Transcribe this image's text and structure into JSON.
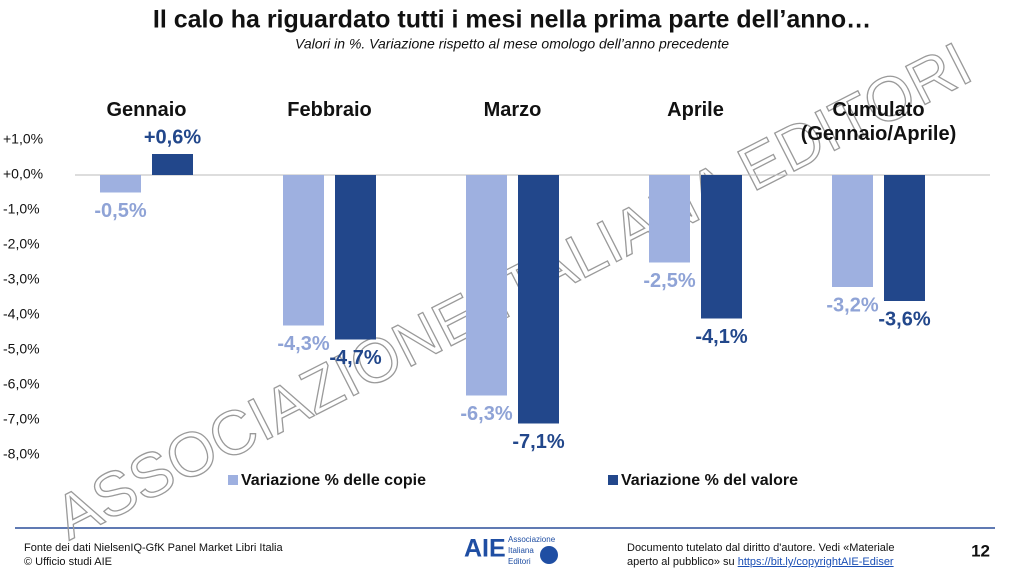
{
  "chart_data": {
    "type": "bar",
    "title": "Il calo ha riguardato tutti i mesi nella prima parte dell’anno…",
    "subtitle": "Valori in %. Variazione rispetto al mese omologo dell’anno precedente",
    "categories": [
      "Gennaio",
      "Febbraio",
      "Marzo",
      "Aprile",
      "Cumulato\n(Gennaio/Aprile)"
    ],
    "series": [
      {
        "name": "Variazione % delle copie",
        "color": "#9eb0e0",
        "values": [
          -0.5,
          -4.3,
          -6.3,
          -2.5,
          -3.2
        ],
        "value_labels": [
          "-0,5%",
          "-4,3%",
          "-6,3%",
          "-2,5%",
          "-3,2%"
        ]
      },
      {
        "name": "Variazione % del valore",
        "color": "#22478b",
        "values": [
          0.6,
          -4.7,
          -7.1,
          -4.1,
          -3.6
        ],
        "value_labels": [
          "+0,6%",
          "-4,7%",
          "-7,1%",
          "-4,1%",
          "-3,6%"
        ]
      }
    ],
    "ylim": [
      -8,
      1
    ],
    "yticks": [
      {
        "value": 1,
        "label": "+1,0%"
      },
      {
        "value": 0,
        "label": "+0,0%"
      },
      {
        "value": -1,
        "label": "-1,0%"
      },
      {
        "value": -2,
        "label": "-2,0%"
      },
      {
        "value": -3,
        "label": "-3,0%"
      },
      {
        "value": -4,
        "label": "-4,0%"
      },
      {
        "value": -5,
        "label": "-5,0%"
      },
      {
        "value": -6,
        "label": "-6,0%"
      },
      {
        "value": -7,
        "label": "-7,0%"
      },
      {
        "value": -8,
        "label": "-8,0%"
      }
    ],
    "legend": "bottom"
  },
  "watermark": "ASSOCIAZIONE ITALIANA EDITORI",
  "footer": {
    "source": [
      "Fonte dei dati NielsenIQ-GfK Panel Market Libri Italia",
      "© Ufficio studi AIE"
    ],
    "logo": {
      "text": "AIE",
      "lines": [
        "Associazione",
        "Italiana",
        "Editori"
      ]
    },
    "notice": "Documento tutelato dal diritto d'autore. Vedi «Materiale aperto al pubblico» su",
    "link": "https://bit.ly/copyrightAIE-Ediser",
    "page": 12
  }
}
